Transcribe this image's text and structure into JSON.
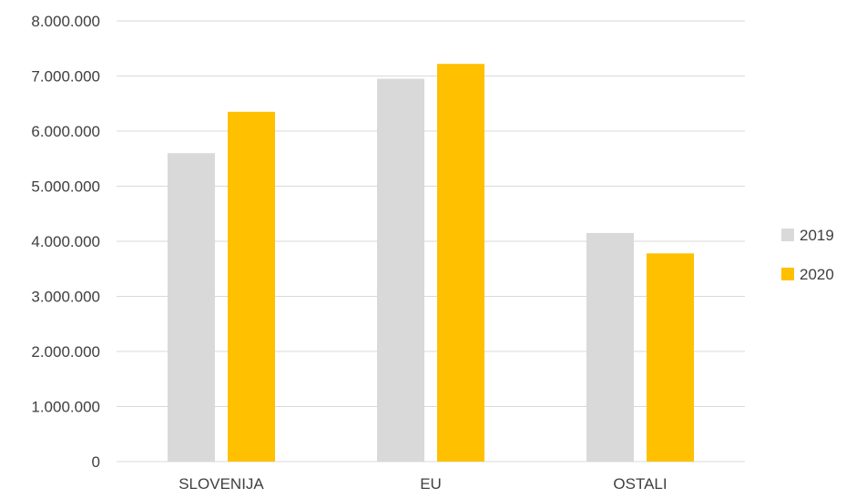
{
  "chart_data": {
    "type": "bar",
    "categories": [
      "SLOVENIJA",
      "EU",
      "OSTALI"
    ],
    "series": [
      {
        "name": "2019",
        "color": "#d9d9d9",
        "values": [
          5600000,
          6950000,
          4150000
        ]
      },
      {
        "name": "2020",
        "color": "#ffc000",
        "values": [
          6350000,
          7220000,
          3780000
        ]
      }
    ],
    "ylim": [
      0,
      8000000
    ],
    "yticks": [
      0,
      1000000,
      2000000,
      3000000,
      4000000,
      5000000,
      6000000,
      7000000,
      8000000
    ],
    "ytick_labels": [
      "0",
      "1.000.000",
      "2.000.000",
      "3.000.000",
      "4.000.000",
      "5.000.000",
      "6.000.000",
      "7.000.000",
      "8.000.000"
    ],
    "grid": true,
    "legend": "right"
  }
}
